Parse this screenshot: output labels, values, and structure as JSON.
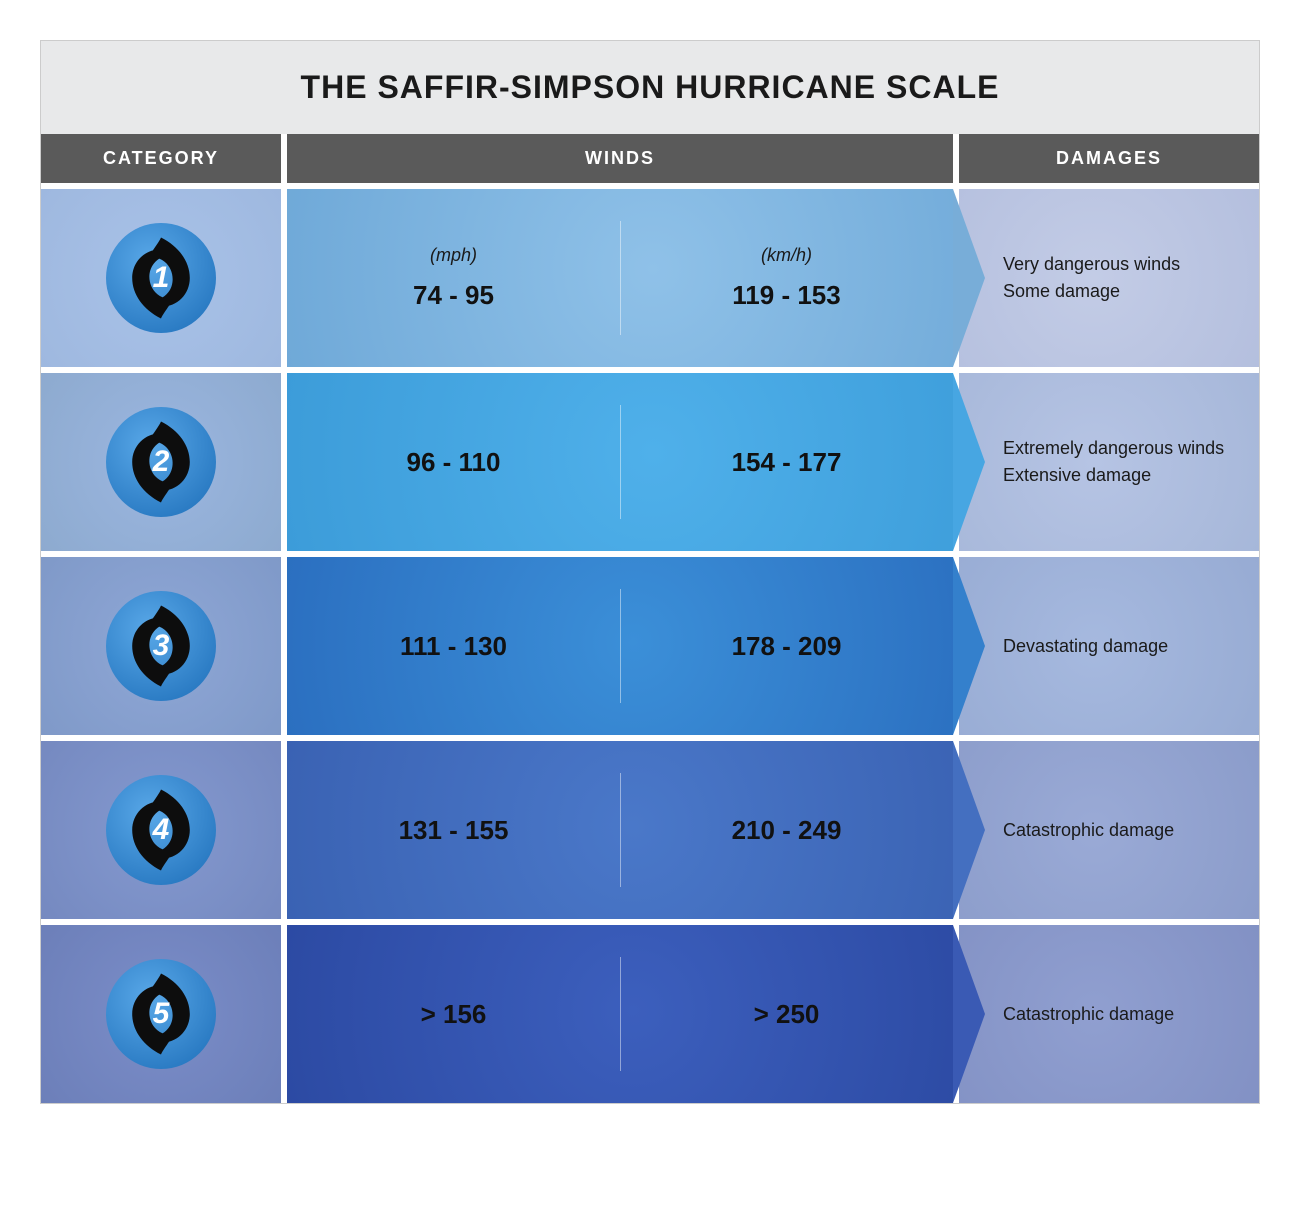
{
  "title": "THE SAFFIR-SIMPSON HURRICANE SCALE",
  "headers": {
    "category": "CATEGORY",
    "winds": "WINDS",
    "damages": "DAMAGES"
  },
  "unit_labels": {
    "mph": "(mph)",
    "kmh": "(km/h)"
  },
  "colors": {
    "title_bg": "#e8e9ea",
    "header_bg": "#5a5a5a",
    "header_text": "#ffffff",
    "text": "#1a1a1a"
  },
  "rows": [
    {
      "num": "1",
      "mph": "74 - 95",
      "kmh": "119 - 153",
      "damage_line1": "Very dangerous winds",
      "damage_line2": "Some damage",
      "cat_bg": "radial-gradient(circle at 50% 50%, #a9c2e8, #9eb8df)",
      "winds_bg": "radial-gradient(circle at 55% 45%, #8fc1e8, #6fa9d8)",
      "damage_bg": "radial-gradient(circle at 45% 50%, #c3cce6, #b4bfde)",
      "arrow_color": "#78add8"
    },
    {
      "num": "2",
      "mph": "96 - 110",
      "kmh": "154 - 177",
      "damage_line1": "Extremely dangerous winds",
      "damage_line2": "Extensive damage",
      "cat_bg": "radial-gradient(circle at 50% 50%, #9bb6e0, #8daacf)",
      "winds_bg": "radial-gradient(circle at 55% 45%, #4fb0ea, #3c9cd9)",
      "damage_bg": "radial-gradient(circle at 45% 50%, #b6c4e4, #a6b7d9)",
      "arrow_color": "#47a6e2"
    },
    {
      "num": "3",
      "mph": "111 - 130",
      "kmh": "178 - 209",
      "damage_line1": "Devastating damage",
      "damage_line2": "",
      "cat_bg": "radial-gradient(circle at 50% 50%, #8fa7d6, #7f99c8)",
      "winds_bg": "radial-gradient(circle at 52% 48%, #3b8fd8, #2b6fc0)",
      "damage_bg": "radial-gradient(circle at 45% 50%, #a6b9df, #97abd3)",
      "arrow_color": "#3480cc"
    },
    {
      "num": "4",
      "mph": "131 - 155",
      "kmh": "210 - 249",
      "damage_line1": "Catastrophic damage",
      "damage_line2": "",
      "cat_bg": "radial-gradient(circle at 50% 50%, #8499cf, #7589c0)",
      "winds_bg": "radial-gradient(circle at 52% 48%, #4a78c9, #3a62b3)",
      "damage_bg": "radial-gradient(circle at 45% 50%, #9aaad6, #8b9cca)",
      "arrow_color": "#446fc0"
    },
    {
      "num": "5",
      "mph": "> 156",
      "kmh": "> 250",
      "damage_line1": "Catastrophic damage",
      "damage_line2": "",
      "cat_bg": "radial-gradient(circle at 50% 50%, #7b8dc8, #6c7fb9)",
      "winds_bg": "radial-gradient(circle at 52% 48%, #3c5fbd, #2c4aa3)",
      "damage_bg": "radial-gradient(circle at 45% 50%, #909fd0, #8291c4)",
      "arrow_color": "#3a5ab4"
    }
  ]
}
